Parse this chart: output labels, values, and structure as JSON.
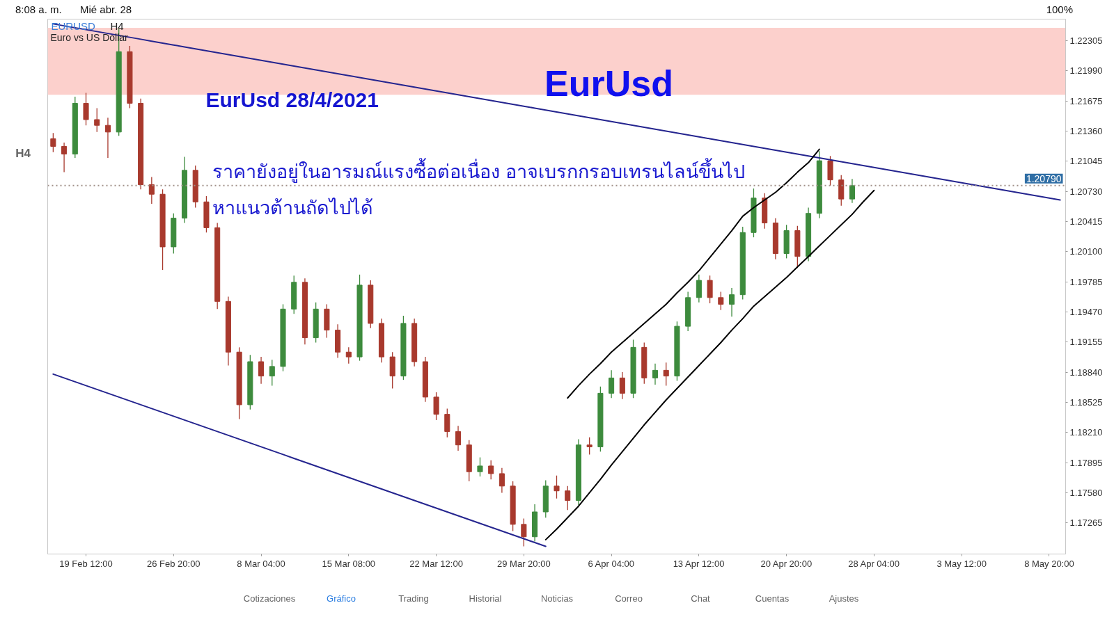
{
  "chart_data": {
    "type": "candlestick",
    "title": "EURUSD",
    "subtitle": "Euro vs US Dollar",
    "categories": [
      null,
      null,
      null,
      "19 Feb 12:00",
      null,
      null,
      null,
      null,
      null,
      null,
      null,
      "26 Feb 20:00",
      null,
      null,
      null,
      null,
      null,
      null,
      null,
      "8 Mar 04:00",
      null,
      null,
      null,
      null,
      null,
      null,
      null,
      "15 Mar 08:00",
      null,
      null,
      null,
      null,
      null,
      null,
      null,
      "22 Mar 12:00",
      null,
      null,
      null,
      null,
      null,
      null,
      null,
      "29 Mar 20:00",
      null,
      null,
      null,
      null,
      null,
      null,
      null,
      "6 Apr 04:00",
      null,
      null,
      null,
      null,
      null,
      null,
      null,
      "13 Apr 12:00",
      null,
      null,
      null,
      null,
      null,
      null,
      null,
      "20 Apr 20:00",
      null,
      null,
      null,
      null,
      null,
      null,
      null,
      "28 Apr 04:00",
      null,
      null,
      null,
      null,
      null,
      null,
      null,
      "3 May 12:00",
      null,
      null,
      null,
      null,
      null,
      null,
      null,
      "8 May 20:00",
      null
    ],
    "ohlc": [
      [
        1.2128,
        1.2134,
        1.2114,
        1.212
      ],
      [
        1.212,
        1.2124,
        1.2093,
        1.2112
      ],
      [
        1.2112,
        1.2172,
        1.2108,
        1.2165
      ],
      [
        1.2165,
        1.2176,
        1.2142,
        1.2148
      ],
      [
        1.2148,
        1.216,
        1.2135,
        1.2142
      ],
      [
        1.2142,
        1.215,
        1.2108,
        1.2135
      ],
      [
        1.2135,
        1.2243,
        1.2131,
        1.2219
      ],
      [
        1.2219,
        1.2225,
        1.216,
        1.2165
      ],
      [
        1.2165,
        1.217,
        1.2075,
        1.208
      ],
      [
        1.208,
        1.2088,
        1.206,
        1.207
      ],
      [
        1.207,
        1.2075,
        1.1991,
        1.2015
      ],
      [
        1.2015,
        1.205,
        1.2008,
        1.2045
      ],
      [
        1.2045,
        1.2109,
        1.204,
        1.2095
      ],
      [
        1.2095,
        1.21,
        1.2056,
        1.2062
      ],
      [
        1.2062,
        1.2068,
        1.203,
        1.2035
      ],
      [
        1.2035,
        1.204,
        1.195,
        1.1958
      ],
      [
        1.1958,
        1.1963,
        1.1891,
        1.1905
      ],
      [
        1.1905,
        1.191,
        1.1835,
        1.185
      ],
      [
        1.185,
        1.1902,
        1.1845,
        1.1895
      ],
      [
        1.1895,
        1.19,
        1.1872,
        1.188
      ],
      [
        1.188,
        1.1897,
        1.187,
        1.189
      ],
      [
        1.189,
        1.1955,
        1.1885,
        1.195
      ],
      [
        1.195,
        1.1985,
        1.1945,
        1.1978
      ],
      [
        1.1978,
        1.1982,
        1.1913,
        1.192
      ],
      [
        1.192,
        1.1957,
        1.1915,
        1.195
      ],
      [
        1.195,
        1.1955,
        1.192,
        1.1928
      ],
      [
        1.1928,
        1.1934,
        1.1899,
        1.1905
      ],
      [
        1.1905,
        1.191,
        1.1893,
        1.19
      ],
      [
        1.19,
        1.1986,
        1.1896,
        1.1975
      ],
      [
        1.1975,
        1.198,
        1.193,
        1.1935
      ],
      [
        1.1935,
        1.194,
        1.1894,
        1.19
      ],
      [
        1.19,
        1.1905,
        1.1867,
        1.188
      ],
      [
        1.188,
        1.1943,
        1.1876,
        1.1935
      ],
      [
        1.1935,
        1.194,
        1.189,
        1.1895
      ],
      [
        1.1895,
        1.19,
        1.1853,
        1.1858
      ],
      [
        1.1858,
        1.1863,
        1.1834,
        1.184
      ],
      [
        1.184,
        1.1846,
        1.1816,
        1.1822
      ],
      [
        1.1822,
        1.1828,
        1.1802,
        1.1808
      ],
      [
        1.1808,
        1.1813,
        1.177,
        1.178
      ],
      [
        1.178,
        1.1795,
        1.1775,
        1.1786
      ],
      [
        1.1786,
        1.1792,
        1.1772,
        1.1778
      ],
      [
        1.1778,
        1.1784,
        1.1758,
        1.1765
      ],
      [
        1.1765,
        1.177,
        1.1718,
        1.1725
      ],
      [
        1.1725,
        1.1731,
        1.1702,
        1.1712
      ],
      [
        1.1712,
        1.1746,
        1.1707,
        1.1738
      ],
      [
        1.1738,
        1.1771,
        1.1732,
        1.1765
      ],
      [
        1.1765,
        1.1776,
        1.1752,
        1.176
      ],
      [
        1.176,
        1.1765,
        1.174,
        1.175
      ],
      [
        1.175,
        1.1814,
        1.1745,
        1.1808
      ],
      [
        1.1808,
        1.1816,
        1.1798,
        1.1806
      ],
      [
        1.1806,
        1.1869,
        1.1801,
        1.1862
      ],
      [
        1.1862,
        1.1886,
        1.1857,
        1.1878
      ],
      [
        1.1878,
        1.1884,
        1.1856,
        1.1862
      ],
      [
        1.1862,
        1.1918,
        1.1857,
        1.191
      ],
      [
        1.191,
        1.1915,
        1.1872,
        1.1878
      ],
      [
        1.1878,
        1.1893,
        1.1871,
        1.1886
      ],
      [
        1.1886,
        1.1894,
        1.187,
        1.188
      ],
      [
        1.188,
        1.1937,
        1.1875,
        1.1932
      ],
      [
        1.1932,
        1.1968,
        1.1927,
        1.1962
      ],
      [
        1.1962,
        1.1986,
        1.1957,
        1.198
      ],
      [
        1.198,
        1.1985,
        1.1956,
        1.1962
      ],
      [
        1.1962,
        1.1968,
        1.1949,
        1.1955
      ],
      [
        1.1955,
        1.1972,
        1.1942,
        1.1965
      ],
      [
        1.1965,
        1.2036,
        1.196,
        1.203
      ],
      [
        1.203,
        1.2076,
        1.2025,
        1.2066
      ],
      [
        1.2066,
        1.2071,
        1.2034,
        1.204
      ],
      [
        1.204,
        1.2045,
        1.2002,
        1.2008
      ],
      [
        1.2008,
        1.2038,
        1.2003,
        1.2032
      ],
      [
        1.2032,
        1.2037,
        1.1993,
        1.2005
      ],
      [
        1.2005,
        1.2056,
        1.2,
        1.205
      ],
      [
        1.205,
        1.2115,
        1.2045,
        1.2105
      ],
      [
        1.2105,
        1.211,
        1.2079,
        1.2085
      ],
      [
        1.2085,
        1.209,
        1.2058,
        1.2065
      ],
      [
        1.2065,
        1.2086,
        1.2061,
        1.2079
      ],
      null,
      null,
      null,
      null,
      null,
      null,
      null,
      null,
      null,
      null,
      null,
      null,
      null,
      null,
      null,
      null,
      null,
      null,
      null
    ],
    "colors": [
      "#a8392d",
      "#a8392d",
      "#3d8b3d",
      "#a8392d",
      "#a8392d",
      "#a8392d",
      "#3d8b3d",
      "#a8392d",
      "#a8392d",
      "#a8392d",
      "#a8392d",
      "#3d8b3d",
      "#3d8b3d",
      "#a8392d",
      "#a8392d",
      "#a8392d",
      "#a8392d",
      "#a8392d",
      "#3d8b3d",
      "#a8392d",
      "#3d8b3d",
      "#3d8b3d",
      "#3d8b3d",
      "#a8392d",
      "#3d8b3d",
      "#a8392d",
      "#a8392d",
      "#a8392d",
      "#3d8b3d",
      "#a8392d",
      "#a8392d",
      "#a8392d",
      "#3d8b3d",
      "#a8392d",
      "#a8392d",
      "#a8392d",
      "#a8392d",
      "#a8392d",
      "#a8392d",
      "#3d8b3d",
      "#a8392d",
      "#a8392d",
      "#a8392d",
      "#a8392d",
      "#3d8b3d",
      "#3d8b3d",
      "#a8392d",
      "#a8392d",
      "#3d8b3d",
      "#a8392d",
      "#3d8b3d",
      "#3d8b3d",
      "#a8392d",
      "#3d8b3d",
      "#a8392d",
      "#3d8b3d",
      "#a8392d",
      "#3d8b3d",
      "#3d8b3d",
      "#3d8b3d",
      "#a8392d",
      "#a8392d",
      "#3d8b3d",
      "#3d8b3d",
      "#3d8b3d",
      "#a8392d",
      "#a8392d",
      "#3d8b3d",
      "#a8392d",
      "#3d8b3d",
      "#3d8b3d",
      "#a8392d",
      "#a8392d",
      "#3d8b3d",
      null,
      null,
      null,
      null,
      null,
      null,
      null,
      null,
      null,
      null,
      null,
      null,
      null,
      null,
      null,
      null,
      null,
      null,
      null
    ],
    "series": [
      {
        "type": "line",
        "color": "#25258f",
        "values": [
          1.2248,
          1.2246,
          1.2244,
          1.2242,
          1.224,
          1.2238,
          1.2236,
          1.2234,
          1.2232,
          1.223,
          1.2228,
          1.2226,
          1.2224,
          1.2222,
          1.222,
          1.2218,
          1.2216,
          1.2214,
          1.2212,
          1.221,
          1.2208,
          1.2206,
          1.2204,
          1.2202,
          1.22,
          1.2198,
          1.2196,
          1.2194,
          1.2192,
          1.219,
          1.2188,
          1.2186,
          1.2184,
          1.2182,
          1.218,
          1.2178,
          1.2176,
          1.2174,
          1.2172,
          1.217,
          1.2168,
          1.2166,
          1.2164,
          1.2162,
          1.216,
          1.2158,
          1.2156,
          1.2154,
          1.2152,
          1.215,
          1.2148,
          1.2146,
          1.2144,
          1.2142,
          1.214,
          1.2138,
          1.2136,
          1.2134,
          1.2132,
          1.213,
          1.2128,
          1.2126,
          1.2124,
          1.2122,
          1.212,
          1.2118,
          1.2116,
          1.2114,
          1.2112,
          1.211,
          1.2108,
          1.2106,
          1.2104,
          1.2102,
          1.21,
          1.2098,
          1.2096,
          1.2094,
          1.2092,
          1.209,
          1.2088,
          1.2086,
          1.2084,
          1.2082,
          1.208,
          1.2078,
          1.2076,
          1.2074,
          1.2072,
          1.207,
          1.2068,
          1.2066,
          1.2064
        ]
      },
      {
        "type": "line",
        "color": "#25258f",
        "values": [
          1.1882,
          1.1878,
          1.1874,
          1.187,
          1.1866,
          1.1862,
          1.1858,
          1.1854,
          1.185,
          1.1846,
          1.1842,
          1.1838,
          1.1834,
          1.183,
          1.1826,
          1.1822,
          1.1818,
          1.1814,
          1.181,
          1.1806,
          1.1802,
          1.1798,
          1.1794,
          1.179,
          1.1786,
          1.1782,
          1.1778,
          1.1774,
          1.177,
          1.1766,
          1.1762,
          1.1758,
          1.1754,
          1.175,
          1.1746,
          1.1742,
          1.1738,
          1.1734,
          1.173,
          1.1726,
          1.1722,
          1.1718,
          1.1714,
          1.171,
          1.1706,
          1.1702,
          null,
          null,
          null,
          null,
          null,
          null,
          null,
          null,
          null,
          null,
          null,
          null,
          null,
          null,
          null,
          null,
          null,
          null,
          null,
          null,
          null,
          null,
          null,
          null,
          null,
          null,
          null,
          null,
          null,
          null,
          null,
          null,
          null,
          null,
          null,
          null,
          null,
          null,
          null,
          null,
          null,
          null,
          null,
          null,
          null,
          null,
          null
        ]
      },
      {
        "type": "line",
        "color": "#000000",
        "values": [
          null,
          null,
          null,
          null,
          null,
          null,
          null,
          null,
          null,
          null,
          null,
          null,
          null,
          null,
          null,
          null,
          null,
          null,
          null,
          null,
          null,
          null,
          null,
          null,
          null,
          null,
          null,
          null,
          null,
          null,
          null,
          null,
          null,
          null,
          null,
          null,
          null,
          null,
          null,
          null,
          null,
          null,
          null,
          null,
          null,
          null,
          null,
          1.1857,
          1.187,
          1.1882,
          1.1893,
          1.1905,
          1.1915,
          1.1925,
          1.1935,
          1.1945,
          1.1955,
          1.1967,
          1.1978,
          1.199,
          1.2004,
          1.2018,
          1.2032,
          1.2047,
          1.2056,
          1.2064,
          1.2072,
          1.2082,
          1.2093,
          1.2103,
          1.2117,
          null,
          null,
          null,
          null,
          null,
          null,
          null,
          null,
          null,
          null,
          null,
          null,
          null,
          null,
          null,
          null,
          null,
          null,
          null,
          null,
          null,
          null
        ]
      },
      {
        "type": "line",
        "color": "#000000",
        "values": [
          null,
          null,
          null,
          null,
          null,
          null,
          null,
          null,
          null,
          null,
          null,
          null,
          null,
          null,
          null,
          null,
          null,
          null,
          null,
          null,
          null,
          null,
          null,
          null,
          null,
          null,
          null,
          null,
          null,
          null,
          null,
          null,
          null,
          null,
          null,
          null,
          null,
          null,
          null,
          null,
          null,
          null,
          null,
          null,
          null,
          1.1709,
          1.172,
          1.1732,
          1.1744,
          1.1758,
          1.1772,
          1.1787,
          1.1801,
          1.1815,
          1.1829,
          1.1842,
          1.1855,
          1.1867,
          1.1879,
          1.1891,
          1.1903,
          1.1915,
          1.1928,
          1.194,
          1.1953,
          1.1963,
          1.1973,
          1.1983,
          1.1994,
          1.2005,
          1.2016,
          1.2027,
          1.2038,
          1.2049,
          1.2062,
          1.2074,
          null,
          null,
          null,
          null,
          null,
          null,
          null,
          null,
          null,
          null,
          null,
          null,
          null,
          null,
          null,
          null,
          null
        ]
      }
    ],
    "ylim": [
      1.1694,
      1.2253
    ],
    "yticks": [
      1.17265,
      {
        "value": 1.1758,
        "label": "1.17580"
      },
      1.17895,
      {
        "value": 1.1821,
        "label": "1.18210"
      },
      1.18525,
      {
        "value": 1.1884,
        "label": "1.18840"
      },
      1.19155,
      {
        "value": 1.1947,
        "label": "1.19470"
      },
      1.19785,
      {
        "value": 1.201,
        "label": "1.20100"
      },
      1.20415,
      {
        "value": 1.2073,
        "label": "1.20730"
      },
      1.21045,
      {
        "value": 1.2136,
        "label": "1.21360"
      },
      1.21675,
      {
        "value": 1.2199,
        "label": "1.21990"
      },
      1.22305
    ],
    "bands": [
      {
        "axis": "y",
        "from": 1.2174,
        "to": 1.2244,
        "color": "#fcd0cc"
      }
    ],
    "ref_lines": [
      {
        "axis": "y",
        "value": 1.2079,
        "label": "1.20790",
        "color": "#a09088",
        "line_style": "dotted"
      }
    ],
    "annotations": [
      "H4",
      "EurUsd",
      "EurUsd 28/4/2021",
      "ราคายังอยู่ในอารมณ์แรงซื้อต่อเนื่อง อาจเบรกกรอบเทรนไลน์ขึ้นไป",
      "หาแนวต้านถัดไปได้",
      "8:08 a. m.",
      "Mié abr. 28",
      "100%",
      "H4",
      "Cotizaciones",
      "Gráfico",
      "Trading",
      "Historial",
      "Noticias",
      "Correo",
      "Chat",
      "Cuentas",
      "Ajustes"
    ]
  }
}
